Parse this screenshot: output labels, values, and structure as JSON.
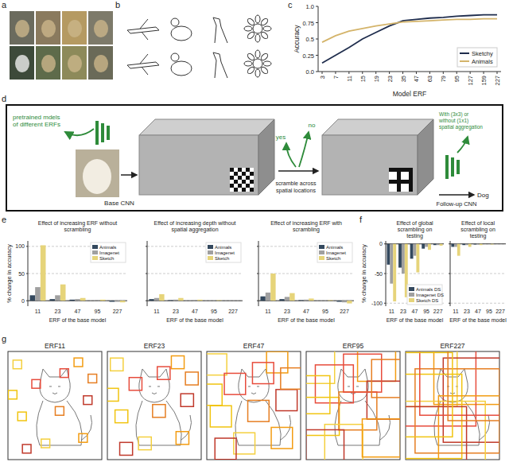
{
  "panel_labels": [
    "a",
    "b",
    "c",
    "d",
    "e",
    "f",
    "g"
  ],
  "chart_data": [
    {
      "type": "line",
      "x_label": "Model ERF",
      "y_label": "Accuracy",
      "categories": [
        "3",
        "7",
        "11",
        "15",
        "19",
        "23",
        "35",
        "47",
        "63",
        "79",
        "95",
        "127",
        "159",
        "227"
      ],
      "series": [
        {
          "name": "Sketchy",
          "color": "#1f2d4d",
          "values": [
            0.13,
            0.25,
            0.37,
            0.5,
            0.6,
            0.7,
            0.78,
            0.8,
            0.82,
            0.83,
            0.85,
            0.86,
            0.87,
            0.87
          ]
        },
        {
          "name": "Animals",
          "color": "#d4b46a",
          "values": [
            0.45,
            0.55,
            0.62,
            0.66,
            0.7,
            0.73,
            0.76,
            0.77,
            0.78,
            0.79,
            0.8,
            0.8,
            0.81,
            0.81
          ]
        }
      ],
      "ylim": [
        0,
        1
      ],
      "yticks": [
        {
          "value": 0,
          "label": "0.0"
        },
        0.25,
        0.5,
        0.75,
        {
          "value": 1,
          "label": "1.0"
        }
      ],
      "legend": "lower right"
    },
    {
      "type": "bar",
      "title": "Effect of increasing ERF without scrambling",
      "x_label": "ERF of the base model",
      "y_label": "% change in accuracy",
      "categories": [
        "11",
        "23",
        "47",
        "95",
        "227"
      ],
      "series": [
        {
          "name": "Animals",
          "color": "#34495e",
          "values": [
            10,
            3,
            2,
            0,
            -2
          ]
        },
        {
          "name": "Imagenet",
          "color": "#a0a0a0",
          "values": [
            25,
            10,
            3,
            1,
            -2
          ]
        },
        {
          "name": "Sketch",
          "color": "#e6d47a",
          "values": [
            102,
            30,
            5,
            2,
            -3
          ]
        }
      ],
      "ylim": [
        -10,
        110
      ],
      "yticks": [
        0,
        50,
        100
      ],
      "grid": true,
      "legend": "upper right"
    },
    {
      "type": "bar",
      "title": "Effect of increasing depth without spatial aggregation",
      "x_label": "ERF of the base model",
      "categories": [
        "11",
        "23",
        "47",
        "95",
        "227"
      ],
      "series": [
        {
          "name": "Animals",
          "color": "#34495e",
          "values": [
            3,
            1,
            0,
            0,
            0
          ]
        },
        {
          "name": "Imagenet",
          "color": "#a0a0a0",
          "values": [
            5,
            2,
            1,
            0,
            0
          ]
        },
        {
          "name": "Sketch",
          "color": "#e6d47a",
          "values": [
            12,
            5,
            2,
            1,
            0
          ]
        }
      ],
      "ylim": [
        -10,
        110
      ],
      "yticks": [
        0,
        50,
        100
      ],
      "grid": true,
      "legend": "upper right",
      "tick_labels": "x"
    },
    {
      "type": "bar",
      "title": "Effect of increasing ERF with scrambling",
      "x_label": "ERF of the base model",
      "categories": [
        "11",
        "23",
        "47",
        "95",
        "227"
      ],
      "series": [
        {
          "name": "Animals",
          "color": "#34495e",
          "values": [
            8,
            3,
            1,
            0,
            -2
          ]
        },
        {
          "name": "Imagenet",
          "color": "#a0a0a0",
          "values": [
            15,
            7,
            2,
            0,
            -3
          ]
        },
        {
          "name": "Sketch",
          "color": "#e6d47a",
          "values": [
            50,
            14,
            4,
            1,
            -5
          ]
        }
      ],
      "ylim": [
        -10,
        110
      ],
      "yticks": [
        0,
        50,
        100
      ],
      "grid": true,
      "legend": "upper right",
      "tick_labels": "x"
    },
    {
      "type": "bar",
      "title": "Effect of global scrambling on testing",
      "x_label": "ERF of the base model",
      "y_label": "% change in accuracy",
      "categories": [
        "11",
        "23",
        "47",
        "95",
        "227"
      ],
      "series": [
        {
          "name": "Animals DS",
          "color": "#34495e",
          "values": [
            -35,
            -40,
            -25,
            -8,
            -2
          ]
        },
        {
          "name": "Imagenet DS",
          "color": "#a0a0a0",
          "values": [
            -67,
            -50,
            -20,
            -5,
            -2
          ]
        },
        {
          "name": "Sketch DS",
          "color": "#e6d47a",
          "values": [
            -97,
            -90,
            -48,
            -10,
            -3
          ]
        }
      ],
      "ylim": [
        -105,
        5
      ],
      "yticks": [
        0,
        -50,
        -100
      ],
      "grid": true,
      "legend": "lower right"
    },
    {
      "type": "bar",
      "title": "Effect of local scrambling on testing",
      "x_label": "ERF of the base model",
      "categories": [
        "11",
        "23",
        "47",
        "95",
        "227"
      ],
      "series": [
        {
          "name": "Animals DS",
          "color": "#34495e",
          "values": [
            -5,
            -2,
            -1,
            0,
            0
          ]
        },
        {
          "name": "Imagenet DS",
          "color": "#a0a0a0",
          "values": [
            -5,
            -2,
            -1,
            0,
            0
          ]
        },
        {
          "name": "Sketch DS",
          "color": "#e6d47a",
          "values": [
            -20,
            -5,
            -2,
            -1,
            0
          ]
        }
      ],
      "ylim": [
        -105,
        5
      ],
      "yticks": [
        0,
        -50,
        -100
      ],
      "grid": true,
      "tick_labels": "x"
    }
  ],
  "diagram": {
    "left_note": "pretrained mdels of different ERFs",
    "base_label": "Base CNN",
    "scramble_label": "scramble across spatial locations",
    "yes": "yes",
    "no": "no",
    "aggregation_note": "With (3x3) or without (1x1) spatial aggregation",
    "followup_label": "Follow-up CNN",
    "output": "Dog"
  },
  "erf_panels": [
    {
      "label": "ERF11",
      "erf": 11
    },
    {
      "label": "ERF23",
      "erf": 23
    },
    {
      "label": "ERF47",
      "erf": 47
    },
    {
      "label": "ERF95",
      "erf": 95
    },
    {
      "label": "ERF227",
      "erf": 227
    }
  ]
}
